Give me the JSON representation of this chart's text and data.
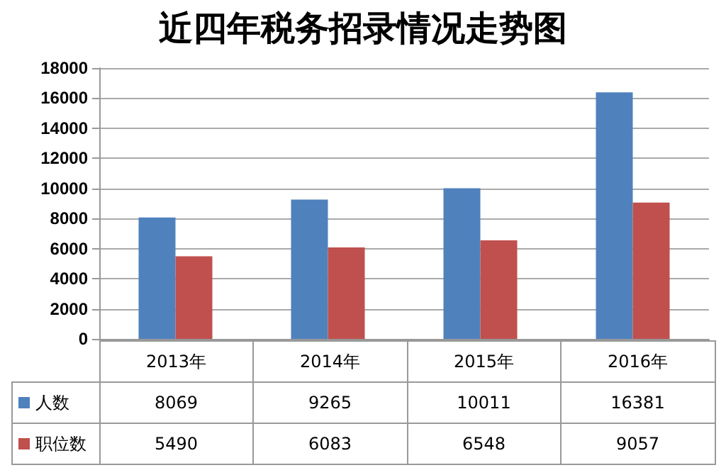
{
  "chart_data": {
    "type": "bar",
    "title": "近四年税务招录情况走势图",
    "categories": [
      "2013年",
      "2014年",
      "2015年",
      "2016年"
    ],
    "series": [
      {
        "name": "人数",
        "color": "#4f81bd",
        "values": [
          8069,
          9265,
          10011,
          16381
        ]
      },
      {
        "name": "职位数",
        "color": "#c0504d",
        "values": [
          5490,
          6083,
          6548,
          9057
        ]
      }
    ],
    "ylim": [
      0,
      18000
    ],
    "yticks": [
      0,
      2000,
      4000,
      6000,
      8000,
      10000,
      12000,
      14000,
      16000,
      18000
    ],
    "grid": "y",
    "legend": "bottom",
    "data_labels": true
  }
}
